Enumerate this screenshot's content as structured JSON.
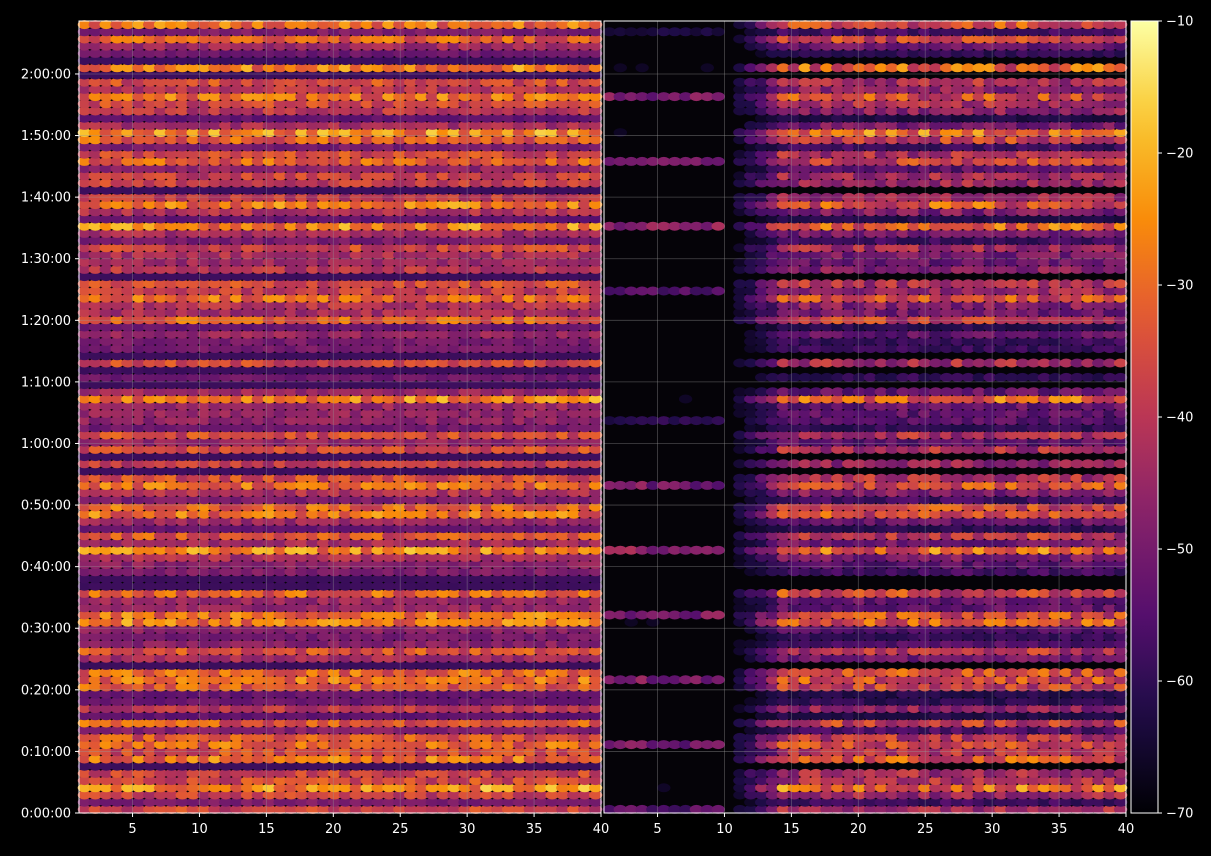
{
  "chart_data": {
    "type": "heatmap",
    "title": "",
    "xlabel": "",
    "ylabel": "",
    "colormap": "inferno",
    "background": "#000000",
    "grid": true,
    "grid_color": "#9a9a9a",
    "y_ticks": [
      "0:00:00",
      "0:10:00",
      "0:20:00",
      "0:30:00",
      "0:40:00",
      "0:50:00",
      "1:00:00",
      "1:10:00",
      "1:20:00",
      "1:30:00",
      "1:40:00",
      "1:50:00",
      "2:00:00"
    ],
    "y_tick_minutes": [
      0,
      10,
      20,
      30,
      40,
      50,
      60,
      70,
      80,
      90,
      100,
      110,
      120
    ],
    "ylim_minutes": [
      0,
      128.6
    ],
    "panels": [
      {
        "xlim": [
          1,
          40
        ],
        "x_ticks": [
          "5",
          "10",
          "15",
          "20",
          "25",
          "30",
          "35",
          "40"
        ],
        "x_tick_values": [
          5,
          10,
          15,
          20,
          25,
          30,
          35,
          40
        ],
        "description_level_range": [
          -60,
          -15
        ]
      },
      {
        "xlim": [
          1,
          40
        ],
        "x_ticks": [
          "5",
          "10",
          "15",
          "20",
          "25",
          "30",
          "35",
          "40"
        ],
        "x_tick_values": [
          5,
          10,
          15,
          20,
          25,
          30,
          35,
          40
        ],
        "description_level_range": [
          -70,
          -18
        ]
      }
    ],
    "colorbar": {
      "min": -70,
      "max": -10,
      "ticks": [
        "−10",
        "−20",
        "−30",
        "−40",
        "−50",
        "−60",
        "−70"
      ],
      "tick_values": [
        -10,
        -20,
        -30,
        -40,
        -50,
        -60,
        -70
      ]
    }
  }
}
